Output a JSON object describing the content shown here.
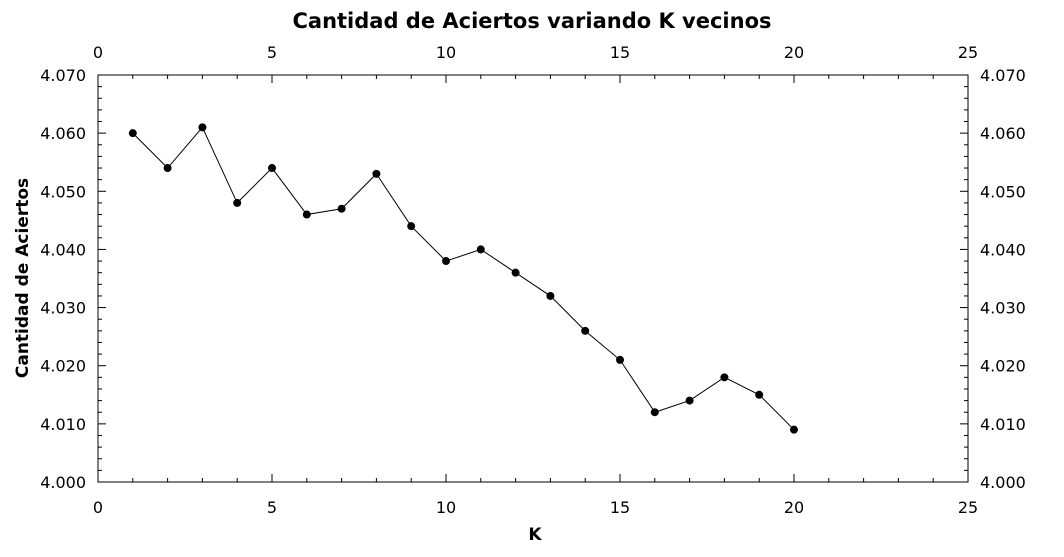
{
  "chart_data": {
    "type": "line",
    "title": "Cantidad de Aciertos variando K vecinos",
    "xlabel": "K",
    "ylabel": "Cantidad de Aciertos",
    "xlim": [
      0,
      25
    ],
    "ylim": [
      4.0,
      4.07
    ],
    "x_ticks": [
      "0",
      "5",
      "10",
      "15",
      "20",
      "25"
    ],
    "y_ticks": [
      "4.000",
      "4.010",
      "4.020",
      "4.030",
      "4.040",
      "4.050",
      "4.060",
      "4.070"
    ],
    "grid": false,
    "series": [
      {
        "x": [
          1,
          2,
          3,
          4,
          5,
          6,
          7,
          8,
          9,
          10,
          11,
          12,
          13,
          14,
          15,
          16,
          17,
          18,
          19,
          20
        ],
        "y": [
          4.06,
          4.054,
          4.061,
          4.048,
          4.054,
          4.046,
          4.047,
          4.053,
          4.044,
          4.038,
          4.04,
          4.036,
          4.032,
          4.026,
          4.021,
          4.012,
          4.014,
          4.018,
          4.015,
          4.009
        ],
        "color": "#000000",
        "marker": "circle"
      }
    ]
  }
}
